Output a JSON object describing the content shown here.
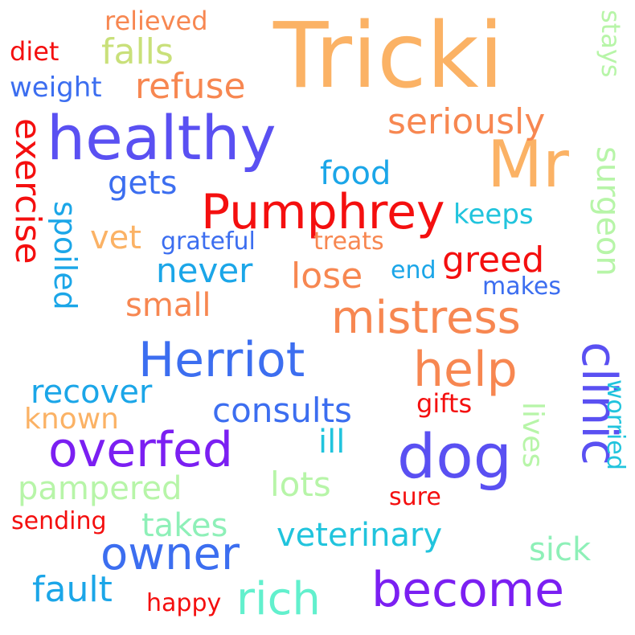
{
  "cloud": {
    "words": [
      {
        "text": "Tricki",
        "color": "#fbb265"
      },
      {
        "text": "healthy",
        "color": "#5a50f2"
      },
      {
        "text": "Mr",
        "color": "#fbb265"
      },
      {
        "text": "Pumphrey",
        "color": "#f40f0f"
      },
      {
        "text": "mistress",
        "color": "#f78751"
      },
      {
        "text": "Herriot",
        "color": "#3c6ef0"
      },
      {
        "text": "help",
        "color": "#f78751"
      },
      {
        "text": "dog",
        "color": "#5a50f2"
      },
      {
        "text": "overfed",
        "color": "#7b1ff2"
      },
      {
        "text": "clinic",
        "color": "#5a50f2"
      },
      {
        "text": "owner",
        "color": "#3c6ef0"
      },
      {
        "text": "become",
        "color": "#7b1ff2"
      },
      {
        "text": "rich",
        "color": "#62f0cd"
      },
      {
        "text": "seriously",
        "color": "#f78751"
      },
      {
        "text": "exercise",
        "color": "#f40f0f"
      },
      {
        "text": "refuse",
        "color": "#f78751"
      },
      {
        "text": "falls",
        "color": "#c9e07a"
      },
      {
        "text": "weight",
        "color": "#3c6ef0"
      },
      {
        "text": "relieved",
        "color": "#f78751"
      },
      {
        "text": "diet",
        "color": "#f40f0f"
      },
      {
        "text": "stays",
        "color": "#b7f5a8"
      },
      {
        "text": "food",
        "color": "#1ba6e8"
      },
      {
        "text": "gets",
        "color": "#3c6ef0"
      },
      {
        "text": "surgeon",
        "color": "#b7f5a8"
      },
      {
        "text": "keeps",
        "color": "#21c4dd"
      },
      {
        "text": "greed",
        "color": "#f40f0f"
      },
      {
        "text": "vet",
        "color": "#fbb265"
      },
      {
        "text": "grateful",
        "color": "#3c6ef0"
      },
      {
        "text": "treats",
        "color": "#f78751"
      },
      {
        "text": "spoiled",
        "color": "#1ba6e8"
      },
      {
        "text": "never",
        "color": "#1ba6e8"
      },
      {
        "text": "lose",
        "color": "#f78751"
      },
      {
        "text": "end",
        "color": "#1ba6e8"
      },
      {
        "text": "makes",
        "color": "#3c6ef0"
      },
      {
        "text": "small",
        "color": "#f78751"
      },
      {
        "text": "recover",
        "color": "#1ba6e8"
      },
      {
        "text": "consults",
        "color": "#3c6ef0"
      },
      {
        "text": "gifts",
        "color": "#f40f0f"
      },
      {
        "text": "known",
        "color": "#fbb265"
      },
      {
        "text": "lives",
        "color": "#b7f5a8"
      },
      {
        "text": "worried",
        "color": "#21c4dd"
      },
      {
        "text": "ill",
        "color": "#21c4dd"
      },
      {
        "text": "pampered",
        "color": "#b7f5a8"
      },
      {
        "text": "lots",
        "color": "#b7f5a8"
      },
      {
        "text": "sure",
        "color": "#f40f0f"
      },
      {
        "text": "sending",
        "color": "#f40f0f"
      },
      {
        "text": "takes",
        "color": "#8ef0b8"
      },
      {
        "text": "veterinary",
        "color": "#21c4dd"
      },
      {
        "text": "sick",
        "color": "#8ef0b8"
      },
      {
        "text": "fault",
        "color": "#1ba6e8"
      },
      {
        "text": "happy",
        "color": "#f40f0f"
      }
    ]
  }
}
